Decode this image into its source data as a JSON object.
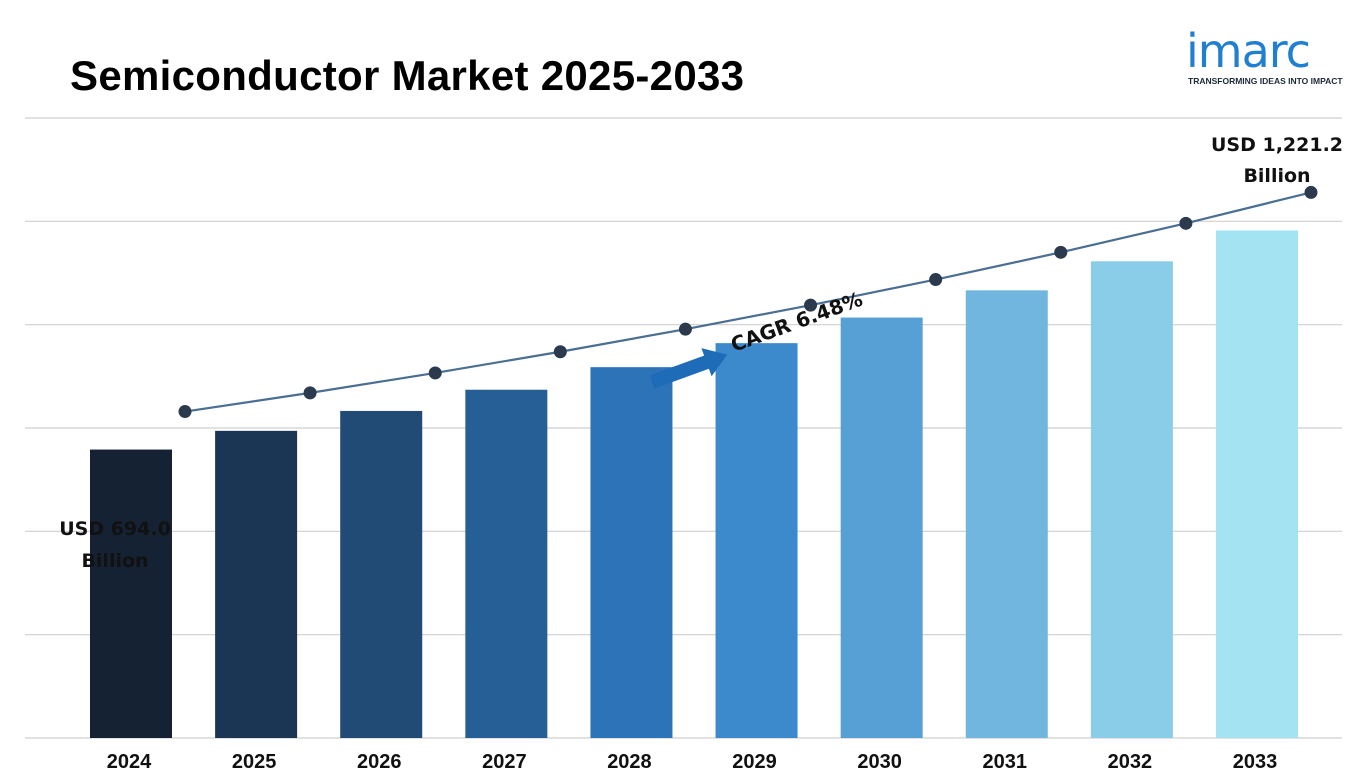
{
  "header": {
    "title": "Semiconductor Market 2025-2033"
  },
  "logo": {
    "wordmark": "imarc",
    "tagline": "TRANSFORMING IDEAS INTO IMPACT",
    "color": "#1f7fd0"
  },
  "chart_data": {
    "type": "bar",
    "categories": [
      "2024",
      "2025",
      "2026",
      "2027",
      "2028",
      "2029",
      "2030",
      "2031",
      "2032",
      "2033"
    ],
    "values": [
      694.0,
      739.0,
      786.9,
      837.9,
      892.2,
      950.0,
      1011.6,
      1077.1,
      1146.9,
      1221.2
    ],
    "title": "Semiconductor Market 2025-2033",
    "xlabel": "",
    "ylabel": "",
    "unit": "USD Billion",
    "ylim": [
      0,
      1350
    ],
    "grid": true,
    "trend_line": true,
    "annotations": {
      "start_label_line1": "USD 694.0",
      "start_label_line2": "Billion",
      "end_label_line1": "USD 1,221.2",
      "end_label_line2": "Billion",
      "cagr": "CAGR 6.48%"
    },
    "colors": {
      "bar_start": "#152234",
      "bar_mid": "#2f7ec7",
      "bar_end": "#a4e3f2",
      "line": "#4a6f93",
      "marker": "#2b3a4d",
      "arrow": "#1e6bb8",
      "grid": "#cfcfcf"
    }
  }
}
